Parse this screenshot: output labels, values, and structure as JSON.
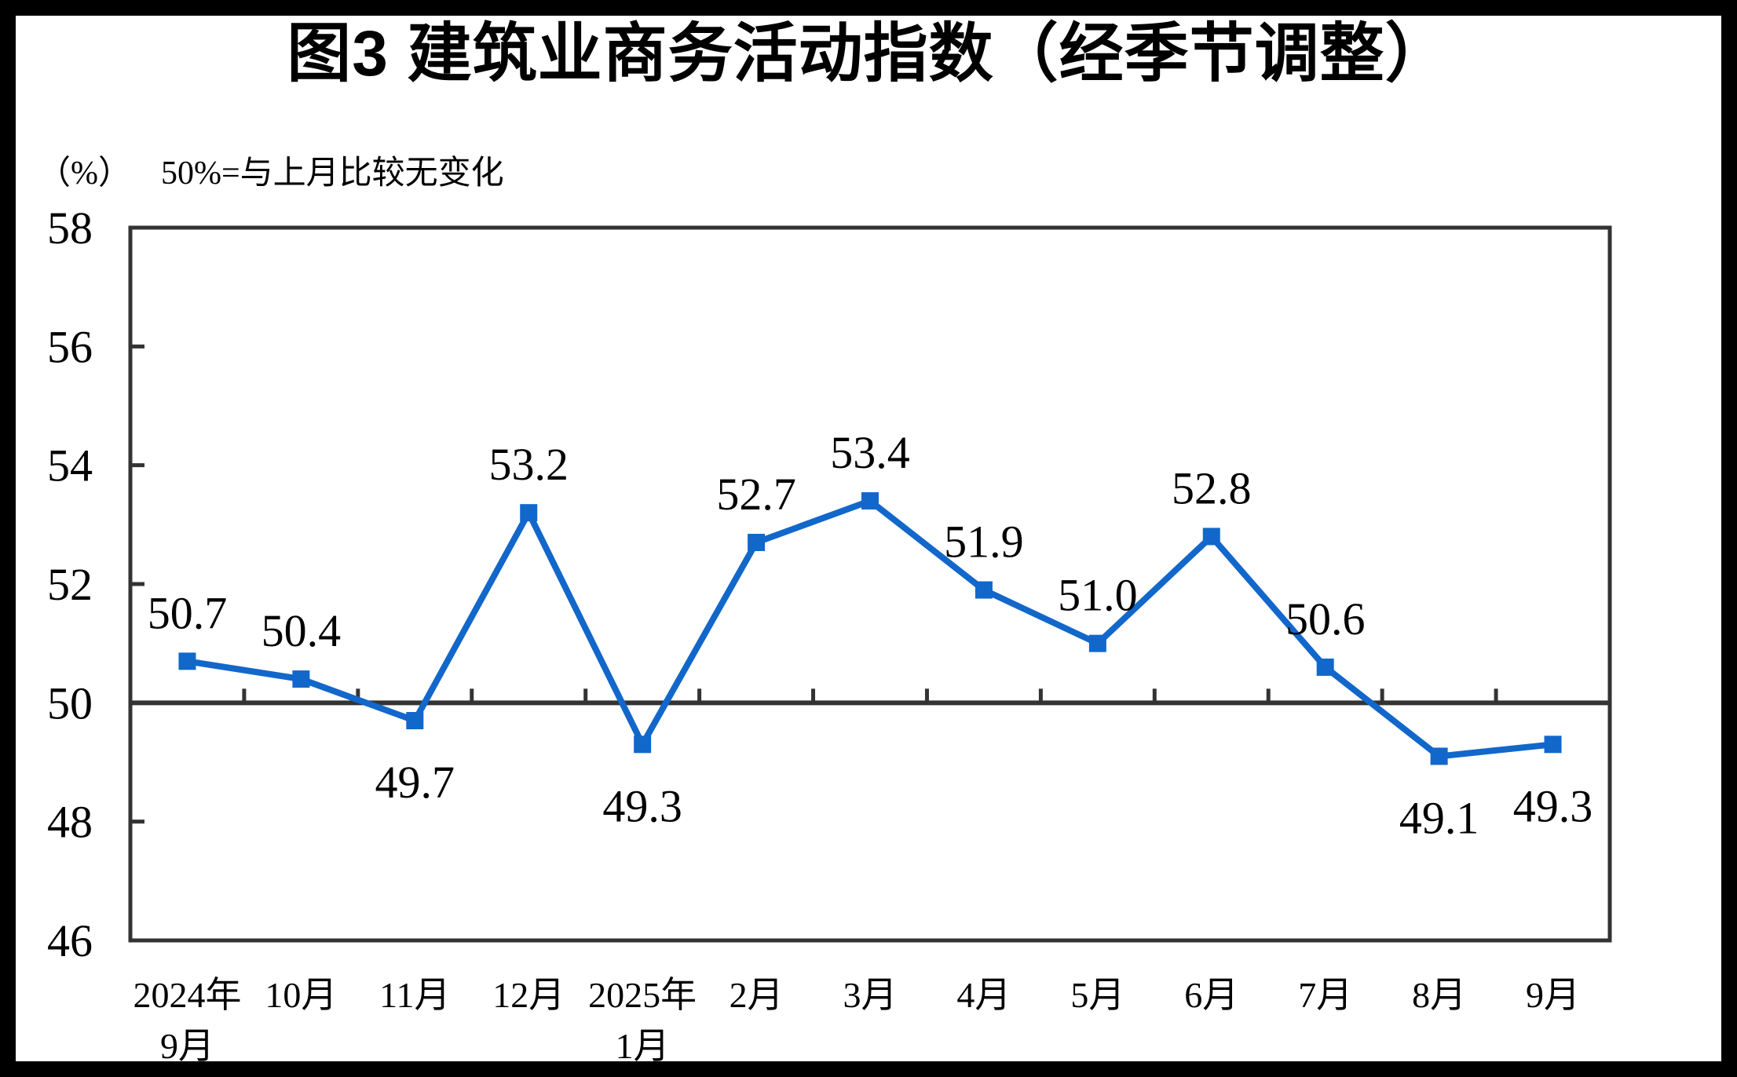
{
  "page": {
    "title": "图3 建筑业商务活动指数（经季节调整）",
    "unit_label": "（%）",
    "reference_note": "50%=与上月比较无变化"
  },
  "chart_data": {
    "type": "line",
    "title": "图3 建筑业商务活动指数（经季节调整）",
    "subtitle_note": "50%=与上月比较无变化",
    "ylabel": "%",
    "ylim": [
      46,
      58
    ],
    "yticks": [
      58,
      56,
      54,
      52,
      50,
      48,
      46
    ],
    "reference_value": 50,
    "grid": false,
    "legend_position": "none",
    "categories": [
      "2024年\n9月",
      "10月",
      "11月",
      "12月",
      "2025年\n1月",
      "2月",
      "3月",
      "4月",
      "5月",
      "6月",
      "7月",
      "8月",
      "9月"
    ],
    "values": [
      50.7,
      50.4,
      49.7,
      53.2,
      49.3,
      52.7,
      53.4,
      51.9,
      51.0,
      52.8,
      50.6,
      49.1,
      49.3
    ],
    "data_labels": [
      "50.7",
      "50.4",
      "49.7",
      "53.2",
      "49.3",
      "52.7",
      "53.4",
      "51.9",
      "51.0",
      "52.8",
      "50.6",
      "49.1",
      "49.3"
    ],
    "label_positions": [
      "above",
      "above",
      "below",
      "above",
      "below",
      "above",
      "above",
      "above",
      "above",
      "above",
      "above",
      "below",
      "below"
    ],
    "colors": {
      "line": "#1267CA",
      "marker": "#1267CA",
      "axis": "#333333",
      "text": "#000000",
      "background": "#FFFFFF",
      "frame": "#000000"
    }
  }
}
